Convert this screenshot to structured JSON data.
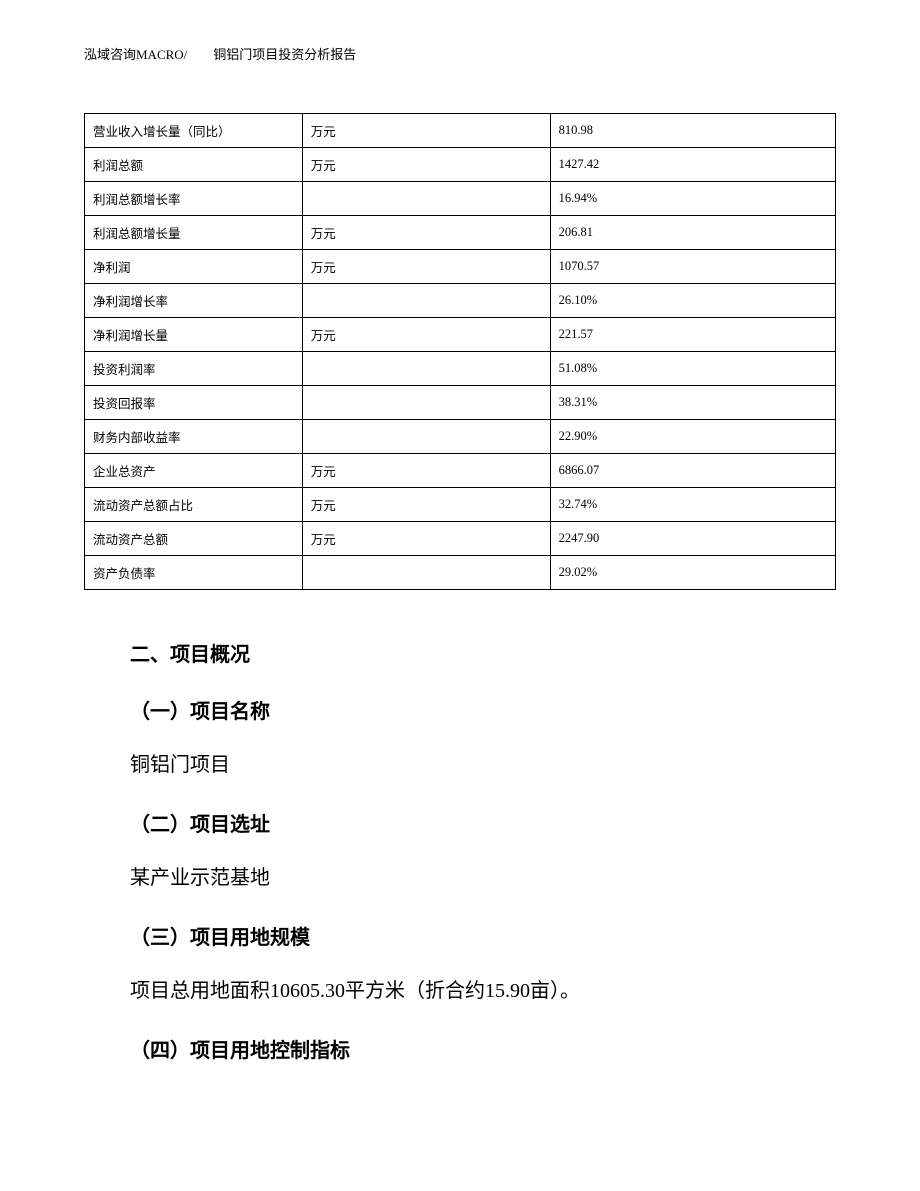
{
  "header": {
    "text": "泓域咨询MACRO/　　铜铝门项目投资分析报告"
  },
  "table": {
    "rows": [
      {
        "label": "营业收入增长量（同比）",
        "unit": "万元",
        "value": "810.98"
      },
      {
        "label": "利润总额",
        "unit": "万元",
        "value": "1427.42"
      },
      {
        "label": "利润总额增长率",
        "unit": "",
        "value": "16.94%"
      },
      {
        "label": "利润总额增长量",
        "unit": "万元",
        "value": "206.81"
      },
      {
        "label": "净利润",
        "unit": "万元",
        "value": "1070.57"
      },
      {
        "label": "净利润增长率",
        "unit": "",
        "value": "26.10%"
      },
      {
        "label": "净利润增长量",
        "unit": "万元",
        "value": "221.57"
      },
      {
        "label": "投资利润率",
        "unit": "",
        "value": "51.08%"
      },
      {
        "label": "投资回报率",
        "unit": "",
        "value": "38.31%"
      },
      {
        "label": "财务内部收益率",
        "unit": "",
        "value": "22.90%"
      },
      {
        "label": "企业总资产",
        "unit": "万元",
        "value": "6866.07"
      },
      {
        "label": "流动资产总额占比",
        "unit": "万元",
        "value": "32.74%"
      },
      {
        "label": "流动资产总额",
        "unit": "万元",
        "value": "2247.90"
      },
      {
        "label": "资产负债率",
        "unit": "",
        "value": "29.02%"
      }
    ]
  },
  "content": {
    "section_heading": "二、项目概况",
    "sub1_heading": "（一）项目名称",
    "sub1_text": "铜铝门项目",
    "sub2_heading": "（二）项目选址",
    "sub2_text": "某产业示范基地",
    "sub3_heading": "（三）项目用地规模",
    "sub3_text": "项目总用地面积10605.30平方米（折合约15.90亩）。",
    "sub4_heading": "（四）项目用地控制指标"
  }
}
